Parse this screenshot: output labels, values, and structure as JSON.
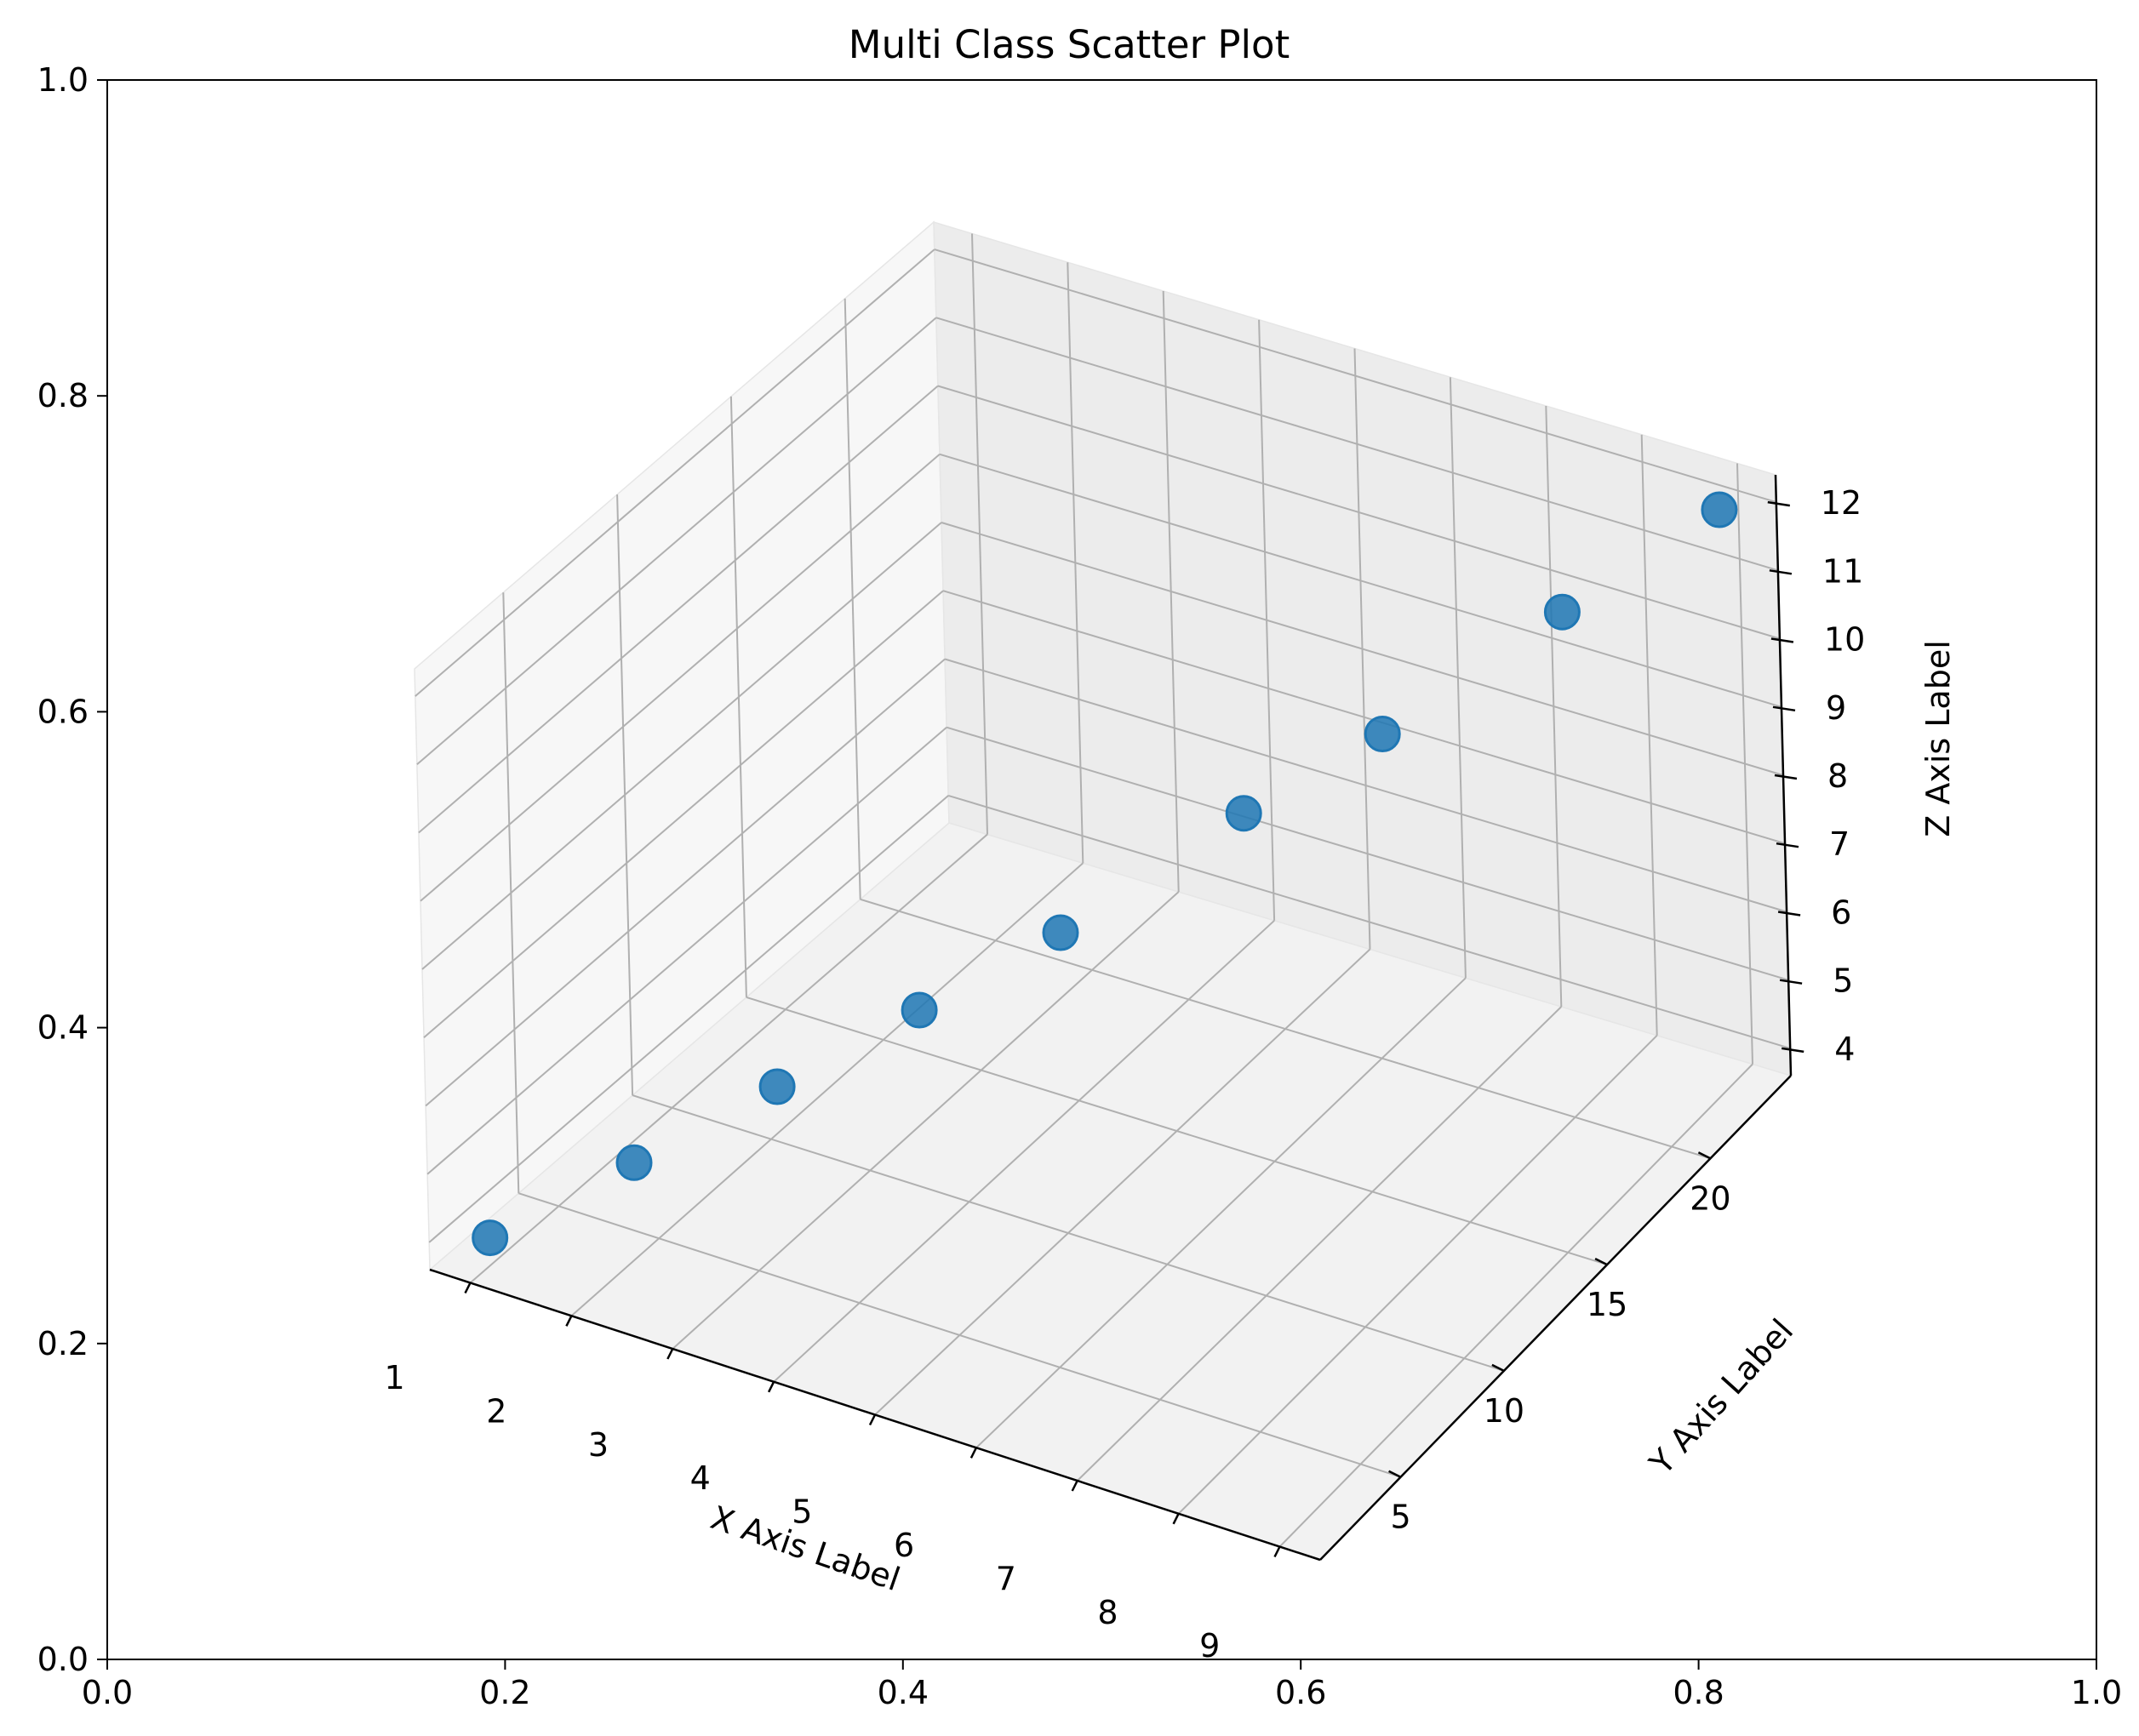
{
  "chart_data": {
    "type": "scatter",
    "projection": "3d",
    "title": "Multi Class Scatter Plot",
    "xlabel": "X Axis Label",
    "ylabel": "Y Axis Label",
    "zlabel": "Z Axis Label",
    "x_ticks": [
      "1",
      "2",
      "3",
      "4",
      "5",
      "6",
      "7",
      "8",
      "9"
    ],
    "y_ticks": [
      "5",
      "10",
      "15",
      "20"
    ],
    "z_ticks": [
      "4",
      "5",
      "6",
      "7",
      "8",
      "9",
      "10",
      "11",
      "12"
    ],
    "xlim": [
      0.6,
      9.4
    ],
    "ylim": [
      1.1,
      23.9
    ],
    "zlim": [
      3.6,
      12.4
    ],
    "grid": true,
    "marker_color": "#1f77b4",
    "points": {
      "x": [
        1,
        2,
        3,
        4,
        5,
        6,
        7,
        8,
        9
      ],
      "y": [
        2,
        4,
        6,
        8,
        10,
        14,
        16,
        20,
        23
      ],
      "z": [
        4,
        5,
        6,
        7,
        8,
        9,
        10,
        11,
        12
      ]
    },
    "background_axes": {
      "x_ticks": [
        "0.0",
        "0.2",
        "0.4",
        "0.6",
        "0.8",
        "1.0"
      ],
      "y_ticks": [
        "0.0",
        "0.2",
        "0.4",
        "0.6",
        "0.8",
        "1.0"
      ]
    }
  }
}
